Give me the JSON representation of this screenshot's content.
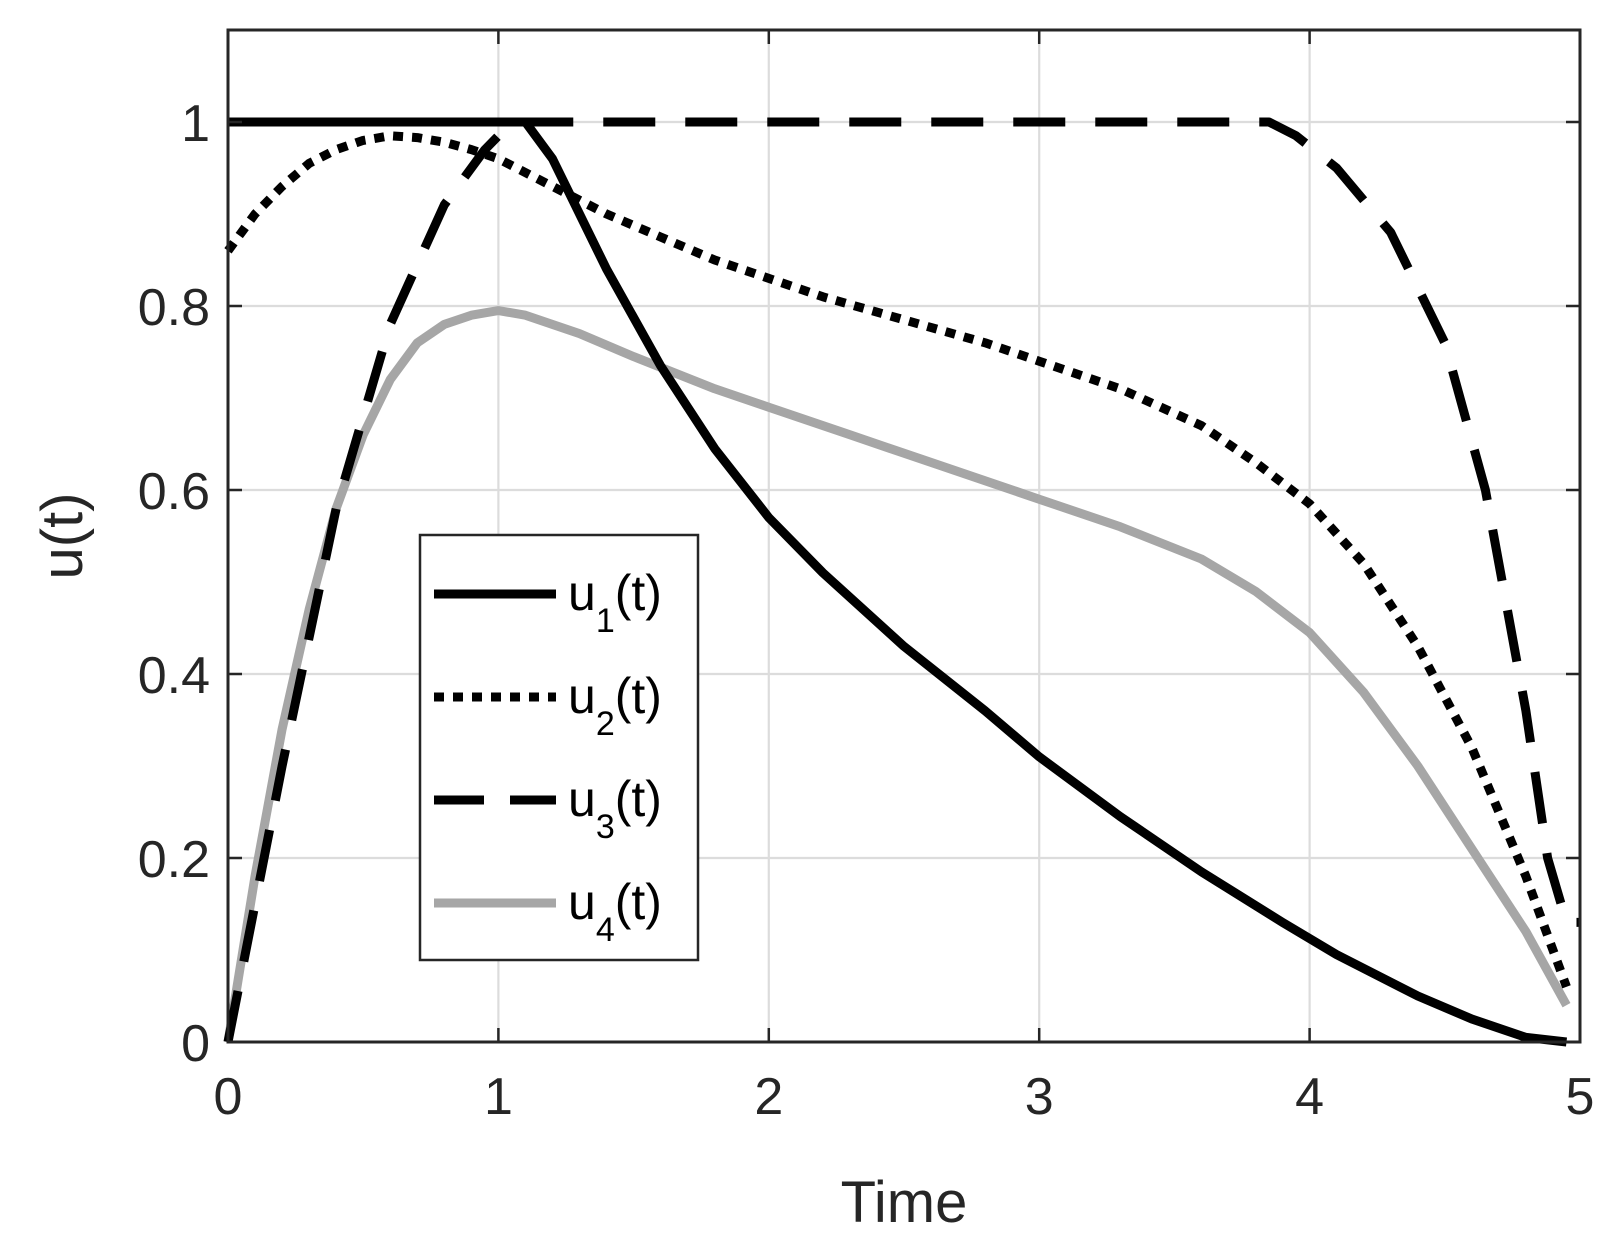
{
  "chart_data": {
    "type": "line",
    "title": "",
    "xlabel": "Time",
    "ylabel": "u(t)",
    "xlim": [
      0,
      5
    ],
    "ylim": [
      0,
      1.1
    ],
    "xticks": [
      0,
      1,
      2,
      3,
      4,
      5
    ],
    "yticks": [
      0,
      0.2,
      0.4,
      0.6,
      0.8,
      1
    ],
    "xtick_labels": [
      "0",
      "1",
      "2",
      "3",
      "4",
      "5"
    ],
    "ytick_labels": [
      "0",
      "0.2",
      "0.4",
      "0.6",
      "0.8",
      "1"
    ],
    "grid": true,
    "legend_position": "center-left",
    "series": [
      {
        "name": "u",
        "name_sub": "1",
        "name_suffix": "(t)",
        "style": "solid",
        "color": "#000000",
        "x": [
          0,
          1.1,
          1.2,
          1.4,
          1.6,
          1.8,
          2.0,
          2.2,
          2.5,
          2.8,
          3.0,
          3.3,
          3.6,
          3.9,
          4.1,
          4.4,
          4.6,
          4.8,
          4.95
        ],
        "y": [
          1,
          1,
          0.96,
          0.84,
          0.735,
          0.645,
          0.57,
          0.51,
          0.43,
          0.36,
          0.31,
          0.245,
          0.185,
          0.13,
          0.095,
          0.05,
          0.025,
          0.005,
          0
        ]
      },
      {
        "name": "u",
        "name_sub": "2",
        "name_suffix": "(t)",
        "style": "dotted",
        "color": "#000000",
        "x": [
          0,
          0.1,
          0.2,
          0.3,
          0.4,
          0.5,
          0.6,
          0.7,
          0.8,
          0.9,
          1.0,
          1.2,
          1.4,
          1.6,
          1.8,
          2.0,
          2.2,
          2.5,
          2.8,
          3.0,
          3.3,
          3.6,
          3.8,
          4.0,
          4.2,
          4.4,
          4.6,
          4.8,
          4.95
        ],
        "y": [
          0.86,
          0.9,
          0.93,
          0.955,
          0.97,
          0.98,
          0.985,
          0.983,
          0.978,
          0.97,
          0.96,
          0.93,
          0.9,
          0.875,
          0.85,
          0.83,
          0.81,
          0.785,
          0.76,
          0.74,
          0.71,
          0.67,
          0.63,
          0.585,
          0.52,
          0.43,
          0.32,
          0.18,
          0.06
        ]
      },
      {
        "name": "u",
        "name_sub": "3",
        "name_suffix": "(t)",
        "style": "dashed",
        "color": "#000000",
        "x": [
          0,
          0.2,
          0.4,
          0.6,
          0.8,
          0.95,
          1.05,
          1.2,
          2.0,
          3.0,
          3.85,
          3.95,
          4.1,
          4.3,
          4.5,
          4.65,
          4.8,
          4.88,
          4.95,
          5.0
        ],
        "y": [
          0,
          0.3,
          0.58,
          0.78,
          0.91,
          0.97,
          1.0,
          1.0,
          1.0,
          1.0,
          1.0,
          0.985,
          0.95,
          0.88,
          0.76,
          0.6,
          0.36,
          0.2,
          0.13,
          0.13
        ]
      },
      {
        "name": "u",
        "name_sub": "4",
        "name_suffix": "(t)",
        "style": "solid",
        "color": "#a6a6a6",
        "x": [
          0,
          0.1,
          0.2,
          0.3,
          0.4,
          0.5,
          0.6,
          0.7,
          0.8,
          0.9,
          1.0,
          1.1,
          1.3,
          1.5,
          1.8,
          2.0,
          2.3,
          2.6,
          3.0,
          3.3,
          3.6,
          3.8,
          4.0,
          4.2,
          4.4,
          4.6,
          4.8,
          4.95
        ],
        "y": [
          0,
          0.18,
          0.34,
          0.47,
          0.58,
          0.66,
          0.72,
          0.76,
          0.78,
          0.79,
          0.795,
          0.79,
          0.77,
          0.745,
          0.71,
          0.69,
          0.66,
          0.63,
          0.59,
          0.56,
          0.525,
          0.49,
          0.445,
          0.38,
          0.3,
          0.21,
          0.12,
          0.04
        ]
      }
    ]
  }
}
